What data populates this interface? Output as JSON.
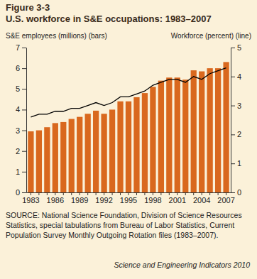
{
  "chart_data": {
    "type": "bar",
    "subtitle": "Figure 3-3",
    "title": "U.S. workforce in S&E occupations: 1983–2007",
    "y_label": "S&E employees (millions) (bars)",
    "y2_label": "Workforce (percent) (line)",
    "annotations": [
      "SOURCE: National Science Foundation, Division of Science Resources Statistics, special tabulations from Bureau of Labor Statistics, Current Population Survey Monthly Outgoing Rotation files (1983–2007).",
      "Science and Engineering Indicators 2010"
    ],
    "categories": [
      "1983",
      null,
      null,
      "1986",
      null,
      null,
      "1989",
      null,
      null,
      "1992",
      null,
      null,
      "1995",
      null,
      null,
      "1998",
      null,
      null,
      "2001",
      null,
      null,
      "2004",
      null,
      null,
      "2007"
    ],
    "series": [
      {
        "type": "bar",
        "color": "#d9681e",
        "values": [
          2.95,
          3.0,
          3.15,
          3.35,
          3.4,
          3.55,
          3.65,
          3.8,
          3.95,
          3.8,
          4.0,
          4.4,
          4.4,
          4.6,
          4.8,
          5.1,
          5.4,
          5.55,
          5.55,
          5.45,
          5.9,
          5.85,
          6.0,
          6.0,
          6.3
        ]
      },
      {
        "type": "line",
        "color": "#000000",
        "axis": "y2",
        "values": [
          2.6,
          2.7,
          2.7,
          2.8,
          2.8,
          2.9,
          2.9,
          3.0,
          3.1,
          3.0,
          3.1,
          3.3,
          3.3,
          3.4,
          3.5,
          3.7,
          3.8,
          3.9,
          3.9,
          3.8,
          4.0,
          3.9,
          4.1,
          4.2,
          4.3
        ]
      }
    ],
    "ylim": [
      0,
      7
    ],
    "yticks": [
      0,
      1,
      2,
      3,
      4,
      5,
      6,
      7
    ],
    "y2lim": [
      0,
      5
    ],
    "y2ticks": [
      0,
      1,
      2,
      3,
      4,
      5
    ],
    "grid": false
  }
}
